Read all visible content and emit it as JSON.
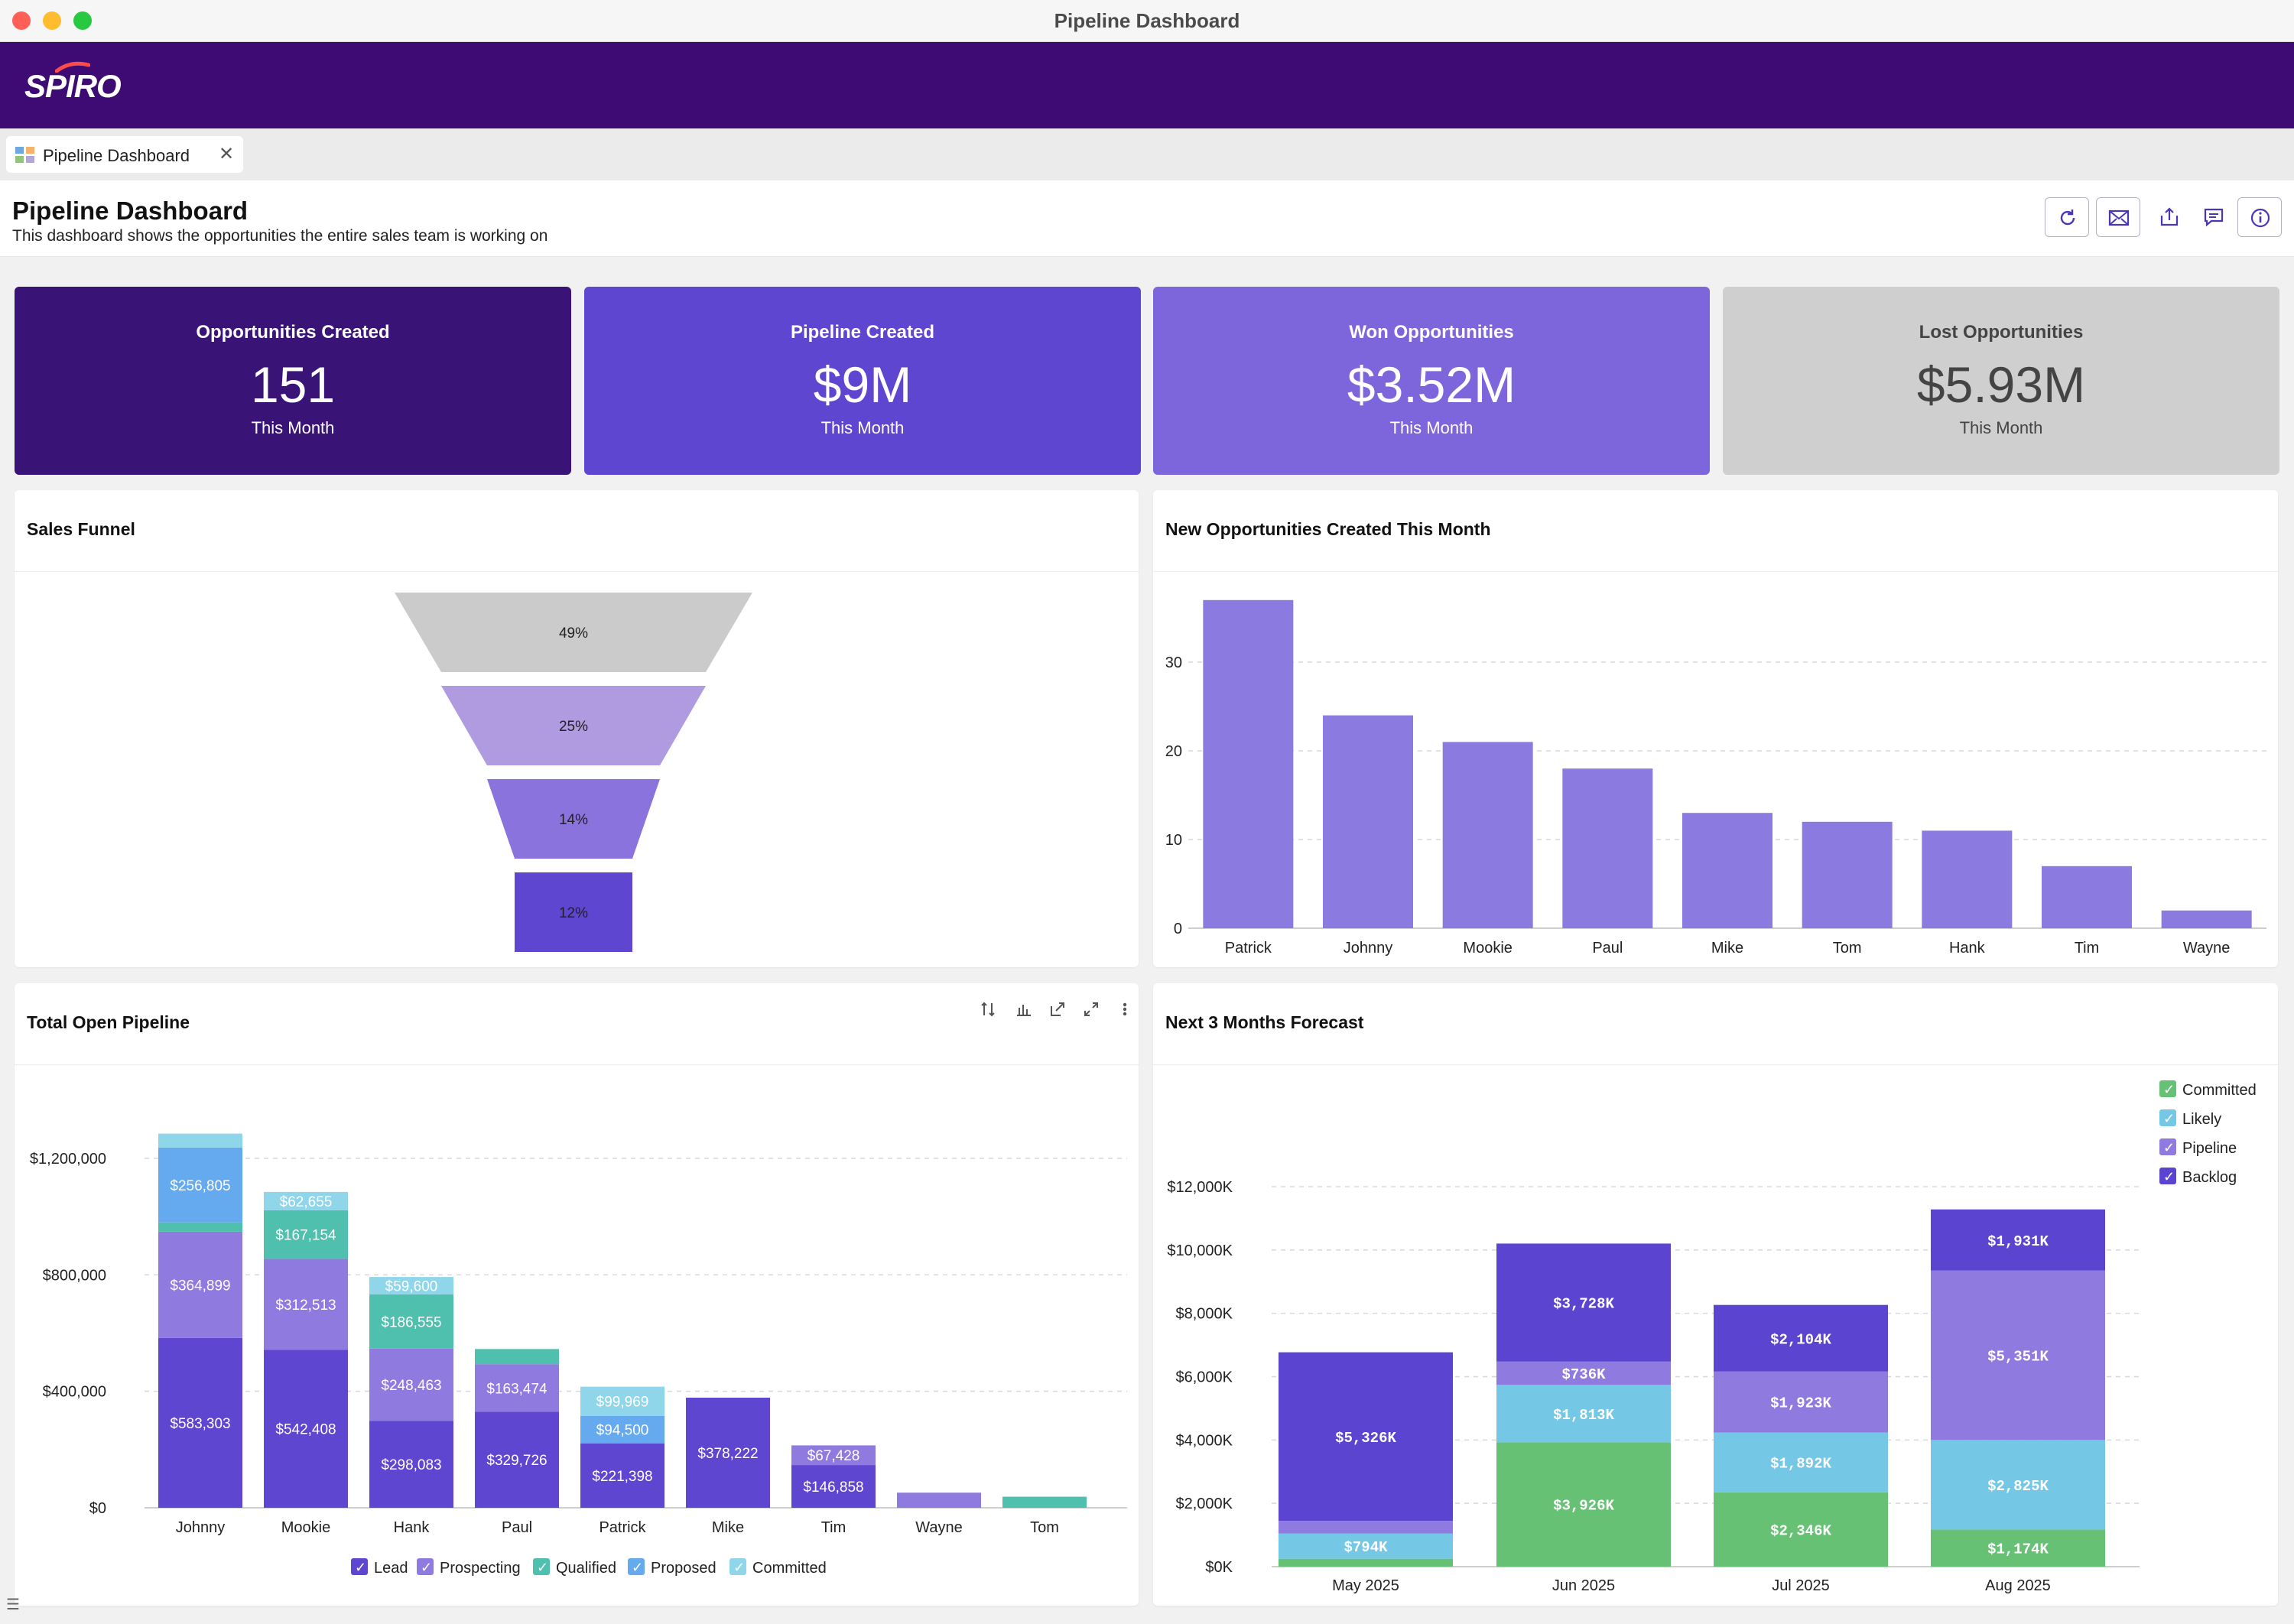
{
  "window": {
    "title": "Pipeline Dashboard"
  },
  "brand": {
    "logo": "SPIRO",
    "bar_color": "#3d0b73"
  },
  "tab": {
    "label": "Pipeline Dashboard",
    "close": "✕",
    "icon": "dashboard-grid-icon"
  },
  "header": {
    "title": "Pipeline Dashboard",
    "subtitle": "This dashboard shows the opportunities the entire sales team is working on",
    "actions": [
      "refresh-icon",
      "email-icon",
      "export-icon",
      "comment-icon",
      "info-icon"
    ]
  },
  "kpis": [
    {
      "label": "Opportunities Created",
      "value": "151",
      "sub": "This Month",
      "bg": "#3a1377",
      "fg": "#ffffff"
    },
    {
      "label": "Pipeline Created",
      "value": "$9M",
      "sub": "This Month",
      "bg": "#5e46d0",
      "fg": "#ffffff"
    },
    {
      "label": "Won Opportunities",
      "value": "$3.52M",
      "sub": "This Month",
      "bg": "#7d66db",
      "fg": "#ffffff"
    },
    {
      "label": "Lost Opportunities",
      "value": "$5.93M",
      "sub": "This Month",
      "bg": "#cfcfcf",
      "fg": "#444444"
    }
  ],
  "panels": {
    "funnel": "Sales Funnel",
    "new_opps": "New Opportunities Created This Month",
    "open_pipeline": "Total Open Pipeline",
    "forecast": "Next 3 Months Forecast"
  },
  "chart_data": [
    {
      "id": "funnel",
      "type": "funnel",
      "title": "Sales Funnel",
      "stages": [
        {
          "label": "49%",
          "value": 49,
          "color": "#cbcbcb"
        },
        {
          "label": "25%",
          "value": 25,
          "color": "#b09ae0"
        },
        {
          "label": "14%",
          "value": 14,
          "color": "#8b73de"
        },
        {
          "label": "12%",
          "value": 12,
          "color": "#5e46d0"
        }
      ]
    },
    {
      "id": "new_opps",
      "type": "bar",
      "title": "New Opportunities Created This Month",
      "categories": [
        "Patrick",
        "Johnny",
        "Mookie",
        "Paul",
        "Mike",
        "Tom",
        "Hank",
        "Tim",
        "Wayne"
      ],
      "values": [
        37,
        24,
        21,
        18,
        13,
        12,
        11,
        7,
        2
      ],
      "yticks": [
        0,
        10,
        20,
        30
      ],
      "ylim": [
        0,
        40
      ],
      "color": "#8b7be0"
    },
    {
      "id": "open_pipeline",
      "type": "bar",
      "stacked": true,
      "title": "Total Open Pipeline",
      "categories": [
        "Johnny",
        "Mookie",
        "Hank",
        "Paul",
        "Patrick",
        "Mike",
        "Tim",
        "Wayne",
        "Tom"
      ],
      "yticks": [
        0,
        400000,
        800000,
        1200000
      ],
      "ytick_labels": [
        "$0",
        "$400,000",
        "$800,000",
        "$1,200,000"
      ],
      "ylim": [
        0,
        1300000
      ],
      "series": [
        {
          "name": "Lead",
          "color": "#5e46d0",
          "values": [
            583303,
            542408,
            298083,
            329726,
            221398,
            378222,
            146858,
            0,
            0
          ],
          "labels": [
            "$583,303",
            "$542,408",
            "$298,083",
            "$329,726",
            "$221,398",
            "$378,222",
            "$146,858",
            "",
            ""
          ]
        },
        {
          "name": "Prospecting",
          "color": "#8f7be0",
          "values": [
            364899,
            312513,
            248463,
            163474,
            0,
            0,
            67428,
            52000,
            0
          ],
          "labels": [
            "$364,899",
            "$312,513",
            "$248,463",
            "$163,474",
            "",
            "",
            "$67,428",
            "",
            ""
          ]
        },
        {
          "name": "Qualified",
          "color": "#4fc0ad",
          "values": [
            32000,
            167154,
            186555,
            52000,
            0,
            0,
            0,
            0,
            38000
          ],
          "labels": [
            "",
            "$167,154",
            "$186,555",
            "",
            "",
            "",
            "",
            "",
            ""
          ]
        },
        {
          "name": "Proposed",
          "color": "#65a9ef",
          "values": [
            256805,
            0,
            0,
            0,
            94500,
            0,
            0,
            0,
            0
          ],
          "labels": [
            "$256,805",
            "",
            "",
            "",
            "$94,500",
            "",
            "",
            "",
            ""
          ]
        },
        {
          "name": "Committed",
          "color": "#8fd6ea",
          "values": [
            48000,
            62655,
            59600,
            0,
            99969,
            0,
            0,
            0,
            0
          ],
          "labels": [
            "",
            "$62,655",
            "$59,600",
            "",
            "$99,969",
            "",
            "",
            "",
            ""
          ]
        }
      ],
      "toolbar": [
        "sort-icon",
        "chart-type-icon",
        "open-external-icon",
        "expand-icon",
        "more-vertical-icon"
      ]
    },
    {
      "id": "forecast",
      "type": "bar",
      "stacked": true,
      "title": "Next 3 Months Forecast",
      "categories": [
        "May 2025",
        "Jun 2025",
        "Jul 2025",
        "Aug 2025"
      ],
      "yticks": [
        0,
        2000,
        4000,
        6000,
        8000,
        10000,
        12000
      ],
      "ytick_labels": [
        "$0K",
        "$2,000K",
        "$4,000K",
        "$6,000K",
        "$8,000K",
        "$10,000K",
        "$12,000K"
      ],
      "ylim": [
        0,
        12500
      ],
      "legend_position": "top-right",
      "series": [
        {
          "name": "Committed",
          "color": "#67c175",
          "values": [
            250,
            3926,
            2346,
            1174
          ],
          "labels": [
            "",
            "$3,926K",
            "$2,346K",
            "$1,174K"
          ]
        },
        {
          "name": "Likely",
          "color": "#75c7e6",
          "values": [
            794,
            1813,
            1892,
            2825
          ],
          "labels": [
            "$794K",
            "$1,813K",
            "$1,892K",
            "$2,825K"
          ]
        },
        {
          "name": "Pipeline",
          "color": "#8f7be0",
          "values": [
            400,
            736,
            1923,
            5351
          ],
          "labels": [
            "",
            "$736K",
            "$1,923K",
            "$5,351K"
          ]
        },
        {
          "name": "Backlog",
          "color": "#5b44cf",
          "values": [
            5326,
            3728,
            2104,
            1931
          ],
          "labels": [
            "$5,326K",
            "$3,728K",
            "$2,104K",
            "$1,931K"
          ]
        }
      ]
    }
  ]
}
